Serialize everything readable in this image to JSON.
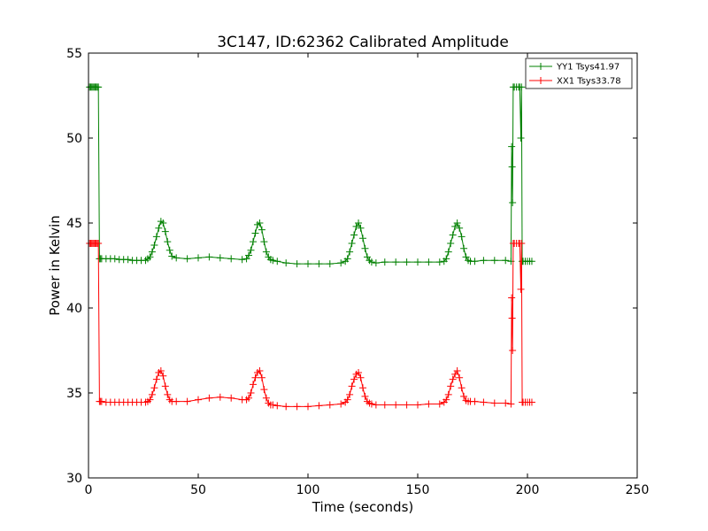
{
  "chart_data": {
    "type": "line",
    "title": "3C147, ID:62362 Calibrated Amplitude",
    "xlabel": "Time (seconds)",
    "ylabel": "Power in Kelvin",
    "xlim": [
      0,
      250
    ],
    "ylim": [
      30,
      55
    ],
    "xticks": [
      0,
      50,
      100,
      150,
      200,
      250
    ],
    "yticks": [
      30,
      35,
      40,
      45,
      50,
      55
    ],
    "grid": false,
    "legend_position": "top-right",
    "series": [
      {
        "name": "YY1 Tsys41.97",
        "color": "#008000",
        "x": [
          0.5,
          1,
          1.5,
          2,
          2.5,
          3,
          3.5,
          4,
          4.5,
          5,
          5.5,
          6,
          8,
          10,
          12,
          14,
          16,
          18,
          20,
          22,
          24,
          26,
          27,
          28,
          29,
          30,
          31,
          32,
          33,
          34,
          35,
          36,
          37,
          38,
          40,
          45,
          50,
          55,
          60,
          65,
          70,
          72,
          73,
          74,
          75,
          76,
          77,
          78,
          79,
          80,
          81,
          82,
          83,
          84,
          86,
          90,
          95,
          100,
          105,
          110,
          115,
          117,
          118,
          119,
          120,
          121,
          122,
          123,
          124,
          125,
          126,
          127,
          128,
          129,
          131,
          135,
          140,
          145,
          150,
          155,
          160,
          162,
          163,
          164,
          165,
          166,
          167,
          168,
          169,
          170,
          171,
          172,
          173,
          174,
          176,
          180,
          185,
          190,
          192.5,
          192.8,
          193,
          193.2,
          193.5,
          194,
          195,
          196,
          196.5,
          197,
          197.3,
          197.6,
          198,
          199,
          200,
          201,
          202
        ],
        "y": [
          53.0,
          53.0,
          53.0,
          53.0,
          53.0,
          53.0,
          53.0,
          53.0,
          53.0,
          42.9,
          42.9,
          42.9,
          42.9,
          42.9,
          42.9,
          42.85,
          42.85,
          42.85,
          42.8,
          42.8,
          42.8,
          42.8,
          42.9,
          43.0,
          43.3,
          43.7,
          44.2,
          44.7,
          45.1,
          45.0,
          44.5,
          43.9,
          43.4,
          43.05,
          42.95,
          42.9,
          42.95,
          43.0,
          42.95,
          42.9,
          42.85,
          42.9,
          43.1,
          43.4,
          43.9,
          44.4,
          44.9,
          45.0,
          44.6,
          43.9,
          43.3,
          43.0,
          42.85,
          42.8,
          42.75,
          42.65,
          42.6,
          42.6,
          42.6,
          42.6,
          42.65,
          42.75,
          42.9,
          43.3,
          43.8,
          44.3,
          44.8,
          45.0,
          44.7,
          44.1,
          43.5,
          43.0,
          42.8,
          42.7,
          42.65,
          42.7,
          42.7,
          42.7,
          42.7,
          42.7,
          42.7,
          42.75,
          42.9,
          43.3,
          43.8,
          44.3,
          44.8,
          45.0,
          44.7,
          44.2,
          43.5,
          43.0,
          42.8,
          42.75,
          42.75,
          42.8,
          42.8,
          42.8,
          42.75,
          49.5,
          48.3,
          46.2,
          53.0,
          53.0,
          53.0,
          53.0,
          53.0,
          50.0,
          53.0,
          42.75,
          42.75,
          42.75,
          42.75,
          42.75,
          42.75
        ]
      },
      {
        "name": "XX1 Tsys33.78",
        "color": "#ff0000",
        "x": [
          0.5,
          1,
          1.5,
          2,
          2.5,
          3,
          3.5,
          4,
          4.5,
          5,
          5.5,
          6,
          8,
          10,
          12,
          14,
          16,
          18,
          20,
          22,
          24,
          26,
          27,
          28,
          29,
          30,
          31,
          32,
          33,
          34,
          35,
          36,
          37,
          38,
          40,
          45,
          50,
          55,
          60,
          65,
          70,
          72,
          73,
          74,
          75,
          76,
          77,
          78,
          79,
          80,
          81,
          82,
          83,
          84,
          86,
          90,
          95,
          100,
          105,
          110,
          115,
          117,
          118,
          119,
          120,
          121,
          122,
          123,
          124,
          125,
          126,
          127,
          128,
          129,
          131,
          135,
          140,
          145,
          150,
          155,
          160,
          162,
          163,
          164,
          165,
          166,
          167,
          168,
          169,
          170,
          171,
          172,
          173,
          174,
          176,
          180,
          185,
          190,
          192.5,
          192.8,
          193,
          193.2,
          193.5,
          194,
          195,
          196,
          196.5,
          197,
          197.3,
          197.6,
          198,
          199,
          200,
          201,
          202
        ],
        "y": [
          43.8,
          43.8,
          43.8,
          43.8,
          43.8,
          43.8,
          43.8,
          43.8,
          43.8,
          34.5,
          34.5,
          34.5,
          34.45,
          34.45,
          34.45,
          34.45,
          34.45,
          34.45,
          34.45,
          34.45,
          34.45,
          34.45,
          34.5,
          34.6,
          34.9,
          35.3,
          35.8,
          36.2,
          36.3,
          36.0,
          35.4,
          34.9,
          34.6,
          34.5,
          34.5,
          34.5,
          34.6,
          34.7,
          34.75,
          34.7,
          34.6,
          34.6,
          34.7,
          35.0,
          35.5,
          35.9,
          36.2,
          36.3,
          35.9,
          35.2,
          34.7,
          34.4,
          34.3,
          34.3,
          34.25,
          34.2,
          34.2,
          34.2,
          34.25,
          34.3,
          34.35,
          34.45,
          34.6,
          34.9,
          35.4,
          35.8,
          36.1,
          36.2,
          35.9,
          35.3,
          34.8,
          34.5,
          34.4,
          34.35,
          34.3,
          34.3,
          34.3,
          34.3,
          34.3,
          34.35,
          34.35,
          34.45,
          34.6,
          34.9,
          35.4,
          35.8,
          36.1,
          36.3,
          35.9,
          35.3,
          34.8,
          34.55,
          34.5,
          34.5,
          34.5,
          34.45,
          34.4,
          34.4,
          34.35,
          40.6,
          39.4,
          37.5,
          43.8,
          43.8,
          43.8,
          43.8,
          43.8,
          41.1,
          43.8,
          34.45,
          34.45,
          34.45,
          34.45,
          34.45,
          34.45
        ]
      }
    ]
  }
}
